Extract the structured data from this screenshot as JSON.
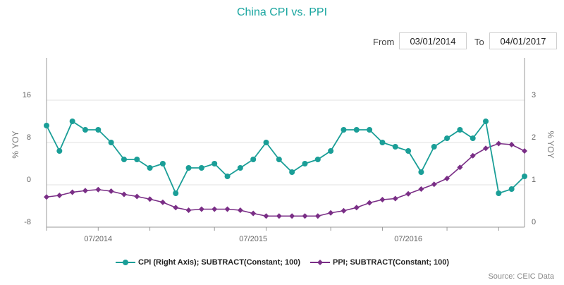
{
  "title": "China CPI vs. PPI",
  "range": {
    "from_label": "From",
    "from_value": "03/01/2014",
    "to_label": "To",
    "to_value": "04/01/2017"
  },
  "source": "Source: CEIC Data",
  "colors": {
    "cpi": "#1a9e97",
    "ppi": "#7a2e86",
    "grid": "#e2e2e2",
    "axis": "#999999"
  },
  "chart_data": {
    "type": "line",
    "x": [
      "03/2014",
      "04/2014",
      "05/2014",
      "06/2014",
      "07/2014",
      "08/2014",
      "09/2014",
      "10/2014",
      "11/2014",
      "12/2014",
      "01/2015",
      "02/2015",
      "03/2015",
      "04/2015",
      "05/2015",
      "06/2015",
      "07/2015",
      "08/2015",
      "09/2015",
      "10/2015",
      "11/2015",
      "12/2015",
      "01/2016",
      "02/2016",
      "03/2016",
      "04/2016",
      "05/2016",
      "06/2016",
      "07/2016",
      "08/2016",
      "09/2016",
      "10/2016",
      "11/2016",
      "12/2016",
      "01/2017",
      "02/2017",
      "03/2017",
      "04/2017"
    ],
    "x_tick_labels": [
      {
        "label": "07/2014",
        "at": "07/2014"
      },
      {
        "label": "07/2015",
        "at": "07/2015"
      },
      {
        "label": "07/2016",
        "at": "07/2016"
      }
    ],
    "series": [
      {
        "name": "CPI (Right Axis); SUBTRACT(Constant; 100)",
        "axis": "right",
        "values": [
          2.4,
          1.8,
          2.5,
          2.3,
          2.3,
          2.0,
          1.6,
          1.6,
          1.4,
          1.5,
          0.8,
          1.4,
          1.4,
          1.5,
          1.2,
          1.4,
          1.6,
          2.0,
          1.6,
          1.3,
          1.5,
          1.6,
          1.8,
          2.3,
          2.3,
          2.3,
          2.0,
          1.9,
          1.8,
          1.3,
          1.9,
          2.1,
          2.3,
          2.1,
          2.5,
          0.8,
          0.9,
          1.2
        ]
      },
      {
        "name": "PPI; SUBTRACT(Constant; 100)",
        "axis": "left",
        "values": [
          -2.3,
          -2.0,
          -1.4,
          -1.1,
          -0.9,
          -1.2,
          -1.8,
          -2.2,
          -2.7,
          -3.3,
          -4.3,
          -4.8,
          -4.6,
          -4.6,
          -4.6,
          -4.8,
          -5.4,
          -5.9,
          -5.9,
          -5.9,
          -5.9,
          -5.9,
          -5.3,
          -4.9,
          -4.3,
          -3.4,
          -2.8,
          -2.6,
          -1.7,
          -0.8,
          0.1,
          1.2,
          3.3,
          5.5,
          6.9,
          7.8,
          7.6,
          6.4
        ]
      }
    ],
    "y_left": {
      "label": "% YOY",
      "min": -8,
      "max": 24,
      "ticks": [
        -8,
        0,
        8,
        16
      ]
    },
    "y_right": {
      "label": "% YOY",
      "min": 0,
      "max": 4,
      "ticks": [
        0,
        1,
        2,
        3
      ]
    },
    "grid": true,
    "legend_position": "bottom"
  }
}
